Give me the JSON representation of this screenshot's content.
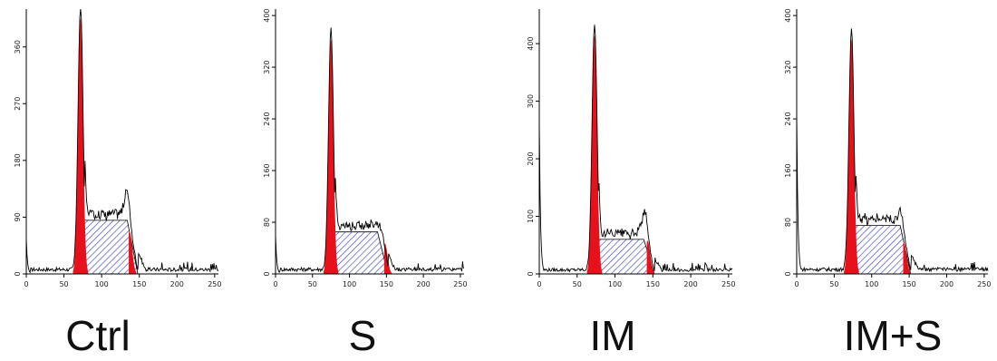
{
  "chart_data": [
    {
      "type": "area",
      "panel_label": "Ctrl",
      "x_ticks": [
        0,
        50,
        100,
        150,
        200,
        250
      ],
      "y_ticks": [
        0,
        90,
        180,
        270,
        360
      ],
      "xlim": [
        0,
        255
      ],
      "ylim": [
        0,
        420
      ],
      "grid": false,
      "g1_peak": {
        "x": 72,
        "height": 405
      },
      "g2_peak": {
        "x": 134,
        "height": 122
      },
      "s_phase_level": 85,
      "hatch_range": [
        66,
        148
      ],
      "debris_height": 55,
      "colors": {
        "g1": "#e8101b",
        "s": "#3b48b8",
        "trace": "#000000"
      }
    },
    {
      "type": "area",
      "panel_label": "S",
      "x_ticks": [
        0,
        50,
        100,
        150,
        200,
        250
      ],
      "y_ticks": [
        0,
        80,
        160,
        240,
        320,
        400
      ],
      "xlim": [
        0,
        255
      ],
      "ylim": [
        0,
        410
      ],
      "grid": false,
      "g1_peak": {
        "x": 75,
        "height": 362
      },
      "g2_peak": {
        "x": 145,
        "height": 85
      },
      "s_phase_level": 65,
      "hatch_range": [
        68,
        152
      ],
      "debris_height": 60,
      "colors": {
        "g1": "#e8101b",
        "s": "#3b48b8",
        "trace": "#000000"
      }
    },
    {
      "type": "area",
      "panel_label": "IM",
      "x_ticks": [
        0,
        50,
        100,
        150,
        200,
        250
      ],
      "y_ticks": [
        0,
        100,
        200,
        300,
        400
      ],
      "xlim": [
        0,
        255
      ],
      "ylim": [
        0,
        460
      ],
      "grid": false,
      "g1_peak": {
        "x": 73,
        "height": 414
      },
      "g2_peak": {
        "x": 140,
        "height": 105
      },
      "s_phase_level": 60,
      "hatch_range": [
        66,
        152
      ],
      "debris_height": 262,
      "colors": {
        "g1": "#e8101b",
        "s": "#3b48b8",
        "trace": "#000000"
      }
    },
    {
      "type": "area",
      "panel_label": "IM+S",
      "x_ticks": [
        0,
        50,
        100,
        150,
        200,
        250
      ],
      "y_ticks": [
        0,
        80,
        160,
        240,
        320,
        400
      ],
      "xlim": [
        0,
        255
      ],
      "ylim": [
        0,
        410
      ],
      "grid": false,
      "g1_peak": {
        "x": 73,
        "height": 364
      },
      "g2_peak": {
        "x": 140,
        "height": 88
      },
      "s_phase_level": 75,
      "hatch_range": [
        68,
        152
      ],
      "debris_height": 250,
      "colors": {
        "g1": "#e8101b",
        "s": "#3b48b8",
        "trace": "#000000"
      }
    }
  ]
}
